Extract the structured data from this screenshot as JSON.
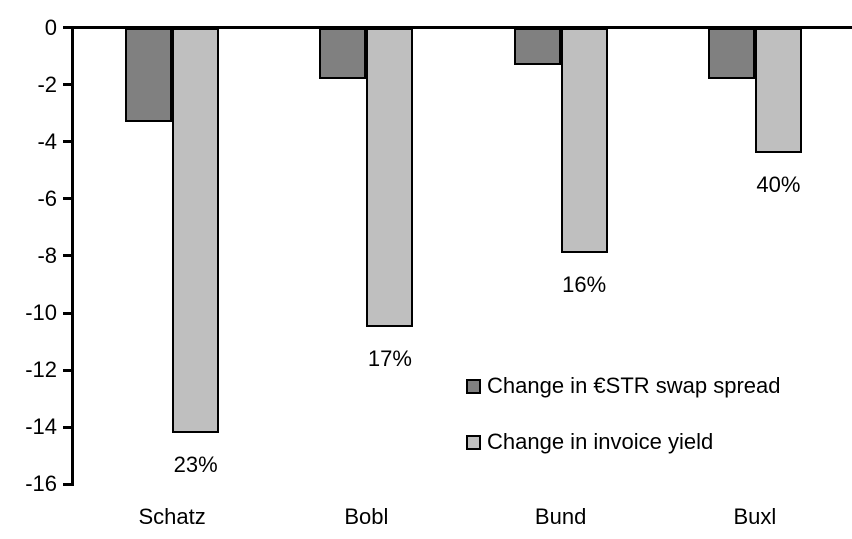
{
  "chart_data": {
    "type": "bar",
    "title": "",
    "categories": [
      "Schatz",
      "Bobl",
      "Bund",
      "Buxl"
    ],
    "series": [
      {
        "name": "Change in €STR swap spread",
        "color": "#808080",
        "values": [
          -3.3,
          -1.8,
          -1.3,
          -1.8
        ]
      },
      {
        "name": "Change in invoice yield",
        "color": "#bfbfbf",
        "values": [
          -14.2,
          -10.5,
          -7.9,
          -4.4
        ],
        "point_labels": [
          "23%",
          "17%",
          "16%",
          "40%"
        ]
      }
    ],
    "xlabel": "",
    "ylabel": "",
    "ylim": [
      -16,
      0
    ],
    "yticks": [
      0,
      -2,
      -4,
      -6,
      -8,
      -10,
      -12,
      -14,
      -16
    ],
    "grid": false,
    "legend_position": "inside-right",
    "bar_outline_color": "#000000",
    "background_color": "#ffffff",
    "text_color": "#000000"
  }
}
